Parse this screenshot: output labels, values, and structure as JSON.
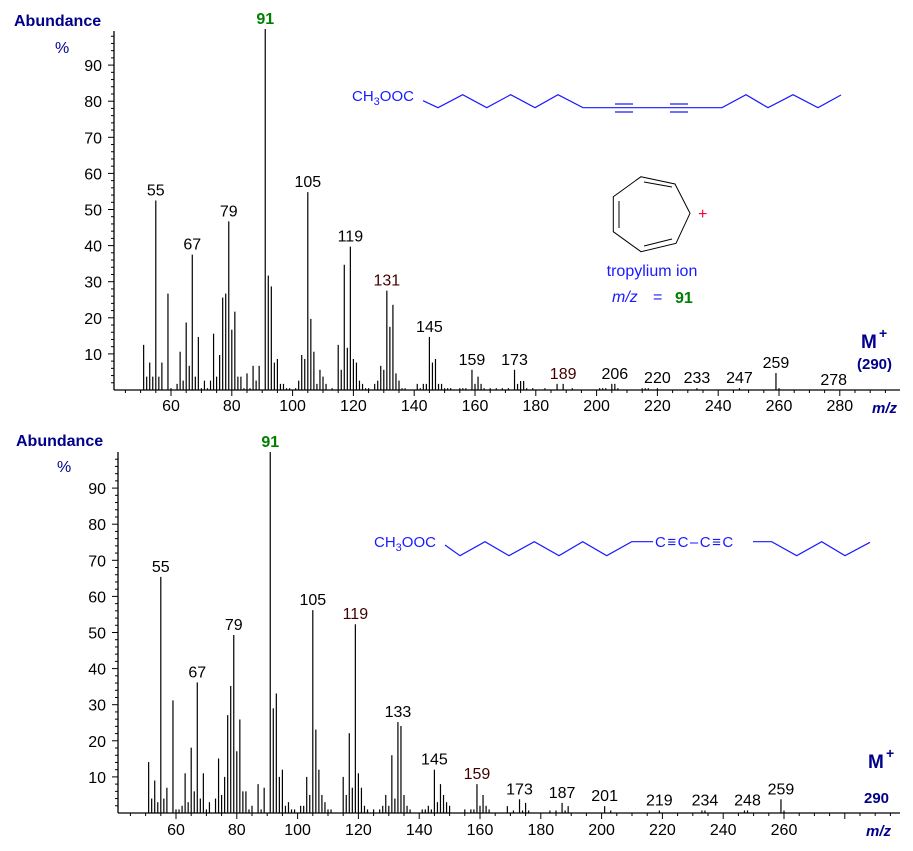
{
  "colors": {
    "axis_title": "#00008b",
    "structure": "#1a1aff",
    "base_peak_label": "#008000",
    "highlight_label": "#400000",
    "plus": "#ff0033"
  },
  "chart_data": [
    {
      "type": "bar",
      "ylabel": "Abundance",
      "yunit": "%",
      "xlabel": "m/z",
      "xlim": [
        41,
        297
      ],
      "ylim": [
        0,
        100
      ],
      "grid": false,
      "x_ticks": [
        "60",
        "80",
        "100",
        "120",
        "140",
        "160",
        "180",
        "200",
        "220",
        "240",
        "260",
        "280"
      ],
      "y_ticks": [
        "10",
        "20",
        "30",
        "40",
        "50",
        "60",
        "70",
        "80",
        "90"
      ],
      "molecular_ion": {
        "label": "M",
        "charge": "+",
        "value": "(290)"
      },
      "structure": {
        "head_a": "CH",
        "head_sub": "3",
        "head_b": "OOC"
      },
      "inset": {
        "name": "tropylium ion",
        "mz_label": "m/z",
        "equals": "=",
        "mz_value": "91",
        "charge": "+"
      },
      "peak_labels": [
        {
          "mz": 55,
          "text": "55"
        },
        {
          "mz": 67,
          "text": "67"
        },
        {
          "mz": 79,
          "text": "79"
        },
        {
          "mz": 91,
          "text": "91",
          "base": true
        },
        {
          "mz": 105,
          "text": "105"
        },
        {
          "mz": 119,
          "text": "119"
        },
        {
          "mz": 131,
          "text": "131",
          "hl": true
        },
        {
          "mz": 145,
          "text": "145"
        },
        {
          "mz": 159,
          "text": "159"
        },
        {
          "mz": 173,
          "text": "173"
        },
        {
          "mz": 189,
          "text": "189",
          "hl": true
        },
        {
          "mz": 206,
          "text": "206"
        },
        {
          "mz": 220,
          "text": "220"
        },
        {
          "mz": 233,
          "text": "233"
        },
        {
          "mz": 247,
          "text": "247"
        },
        {
          "mz": 259,
          "text": "259"
        },
        {
          "mz": 278,
          "text": "278"
        }
      ],
      "peaks": [
        [
          51,
          12.5
        ],
        [
          52,
          3.7
        ],
        [
          53,
          7.6
        ],
        [
          54,
          3.7
        ],
        [
          55,
          52.5
        ],
        [
          56,
          3.7
        ],
        [
          57,
          7.6
        ],
        [
          59,
          26.7
        ],
        [
          60,
          0.5
        ],
        [
          62,
          1.7
        ],
        [
          63,
          10.6
        ],
        [
          64,
          2.6
        ],
        [
          65,
          18.7
        ],
        [
          66,
          6.7
        ],
        [
          67,
          37.5
        ],
        [
          68,
          3.7
        ],
        [
          69,
          14.7
        ],
        [
          70,
          0.5
        ],
        [
          71,
          2.6
        ],
        [
          72,
          0.5
        ],
        [
          73,
          2.6
        ],
        [
          74,
          15.6
        ],
        [
          75,
          3.7
        ],
        [
          76,
          9.7
        ],
        [
          77,
          25.6
        ],
        [
          78,
          26.7
        ],
        [
          79,
          46.7
        ],
        [
          80,
          16.7
        ],
        [
          81,
          21.7
        ],
        [
          82,
          3.7
        ],
        [
          83,
          3.7
        ],
        [
          84,
          0.5
        ],
        [
          85,
          4.6
        ],
        [
          86,
          0.5
        ],
        [
          87,
          6.7
        ],
        [
          88,
          2.6
        ],
        [
          89,
          6.7
        ],
        [
          91,
          100
        ],
        [
          92,
          31.7
        ],
        [
          93,
          28.7
        ],
        [
          94,
          7.6
        ],
        [
          95,
          8.6
        ],
        [
          96,
          1.7
        ],
        [
          97,
          1.7
        ],
        [
          98,
          0.5
        ],
        [
          99,
          0.5
        ],
        [
          101,
          0.5
        ],
        [
          102,
          2.6
        ],
        [
          103,
          9.7
        ],
        [
          104,
          8.6
        ],
        [
          105,
          54.8
        ],
        [
          106,
          19.7
        ],
        [
          107,
          10.6
        ],
        [
          108,
          1.7
        ],
        [
          109,
          5.6
        ],
        [
          110,
          3.7
        ],
        [
          111,
          1.7
        ],
        [
          113,
          0.5
        ],
        [
          115,
          12.5
        ],
        [
          116,
          5.6
        ],
        [
          117,
          34.7
        ],
        [
          118,
          11.7
        ],
        [
          119,
          39.7
        ],
        [
          120,
          8.6
        ],
        [
          121,
          7.6
        ],
        [
          122,
          2.6
        ],
        [
          123,
          1.7
        ],
        [
          124,
          0.5
        ],
        [
          125,
          0.5
        ],
        [
          127,
          1.7
        ],
        [
          128,
          2.6
        ],
        [
          129,
          6.7
        ],
        [
          130,
          5.6
        ],
        [
          131,
          27.5
        ],
        [
          132,
          17.5
        ],
        [
          133,
          23.6
        ],
        [
          134,
          4.6
        ],
        [
          135,
          2.6
        ],
        [
          136,
          0.5
        ],
        [
          137,
          0.5
        ],
        [
          141,
          1.7
        ],
        [
          142,
          0.5
        ],
        [
          143,
          1.7
        ],
        [
          144,
          1.7
        ],
        [
          145,
          14.7
        ],
        [
          146,
          7.6
        ],
        [
          147,
          8.6
        ],
        [
          148,
          1.7
        ],
        [
          149,
          1.7
        ],
        [
          150,
          0.5
        ],
        [
          151,
          0.5
        ],
        [
          152,
          0.5
        ],
        [
          155,
          0.5
        ],
        [
          156,
          0.5
        ],
        [
          157,
          0.5
        ],
        [
          159,
          5.6
        ],
        [
          160,
          1.7
        ],
        [
          161,
          3.7
        ],
        [
          162,
          1.7
        ],
        [
          163,
          0.5
        ],
        [
          165,
          0.5
        ],
        [
          167,
          0.5
        ],
        [
          169,
          0.5
        ],
        [
          171,
          0.5
        ],
        [
          173,
          5.6
        ],
        [
          174,
          1.7
        ],
        [
          175,
          2.5
        ],
        [
          176,
          2.5
        ],
        [
          177,
          0.5
        ],
        [
          179,
          0.5
        ],
        [
          183,
          0.5
        ],
        [
          187,
          1.7
        ],
        [
          189,
          1.7
        ],
        [
          192,
          0.5
        ],
        [
          201,
          0.5
        ],
        [
          202,
          0.5
        ],
        [
          203,
          0.5
        ],
        [
          205,
          1.7
        ],
        [
          206,
          1.7
        ],
        [
          207,
          0.5
        ],
        [
          215,
          0.5
        ],
        [
          216,
          0.5
        ],
        [
          217,
          0.5
        ],
        [
          220,
          0.5
        ],
        [
          233,
          0.5
        ],
        [
          247,
          0.5
        ],
        [
          259,
          4.7
        ],
        [
          260,
          0.5
        ]
      ]
    },
    {
      "type": "bar",
      "ylabel": "Abundance",
      "yunit": "%",
      "xlabel": "m/z",
      "xlim": [
        41,
        296
      ],
      "ylim": [
        0,
        100
      ],
      "grid": false,
      "x_ticks": [
        "60",
        "80",
        "100",
        "120",
        "140",
        "160",
        "180",
        "200",
        "220",
        "240",
        "260"
      ],
      "y_ticks": [
        "10",
        "20",
        "30",
        "40",
        "50",
        "60",
        "70",
        "80",
        "90"
      ],
      "molecular_ion": {
        "label": "M",
        "charge": "+",
        "value": "290"
      },
      "structure": {
        "head_a": "CH",
        "head_sub": "3",
        "head_b": "OOC",
        "diyne": "C≡C–C≡C"
      },
      "peak_labels": [
        {
          "mz": 55,
          "text": "55"
        },
        {
          "mz": 67,
          "text": "67"
        },
        {
          "mz": 79,
          "text": "79"
        },
        {
          "mz": 91,
          "text": "91",
          "base": true
        },
        {
          "mz": 105,
          "text": "105"
        },
        {
          "mz": 119,
          "text": "119",
          "hl": true
        },
        {
          "mz": 133,
          "text": "133"
        },
        {
          "mz": 145,
          "text": "145"
        },
        {
          "mz": 159,
          "text": "159",
          "hl": true
        },
        {
          "mz": 173,
          "text": "173"
        },
        {
          "mz": 187,
          "text": "187"
        },
        {
          "mz": 201,
          "text": "201"
        },
        {
          "mz": 219,
          "text": "219"
        },
        {
          "mz": 234,
          "text": "234"
        },
        {
          "mz": 248,
          "text": "248"
        },
        {
          "mz": 259,
          "text": "259"
        }
      ],
      "peaks": [
        [
          51,
          14.1
        ],
        [
          52,
          4
        ],
        [
          53,
          9
        ],
        [
          54,
          3
        ],
        [
          55,
          65.4
        ],
        [
          56,
          4
        ],
        [
          57,
          7
        ],
        [
          59,
          31.2
        ],
        [
          60,
          1
        ],
        [
          61,
          1
        ],
        [
          62,
          2
        ],
        [
          63,
          11
        ],
        [
          64,
          3
        ],
        [
          65,
          18.1
        ],
        [
          66,
          6
        ],
        [
          67,
          36.2
        ],
        [
          68,
          4
        ],
        [
          69,
          11
        ],
        [
          70,
          1
        ],
        [
          71,
          3
        ],
        [
          73,
          4
        ],
        [
          74,
          15.1
        ],
        [
          75,
          5
        ],
        [
          76,
          10
        ],
        [
          77,
          27.1
        ],
        [
          78,
          35.2
        ],
        [
          79,
          49.3
        ],
        [
          80,
          17.1
        ],
        [
          81,
          25.9
        ],
        [
          82,
          6
        ],
        [
          83,
          6
        ],
        [
          84,
          1
        ],
        [
          85,
          2
        ],
        [
          87,
          8
        ],
        [
          88,
          1
        ],
        [
          89,
          7
        ],
        [
          91,
          100
        ],
        [
          92,
          29
        ],
        [
          93,
          33.1
        ],
        [
          94,
          10
        ],
        [
          95,
          12
        ],
        [
          96,
          2
        ],
        [
          97,
          3
        ],
        [
          98,
          1
        ],
        [
          99,
          1
        ],
        [
          101,
          2
        ],
        [
          102,
          2
        ],
        [
          103,
          10
        ],
        [
          104,
          5
        ],
        [
          105,
          56.2
        ],
        [
          106,
          23.1
        ],
        [
          107,
          12
        ],
        [
          108,
          5
        ],
        [
          109,
          3
        ],
        [
          110,
          1
        ],
        [
          111,
          1
        ],
        [
          115,
          10
        ],
        [
          116,
          5
        ],
        [
          117,
          22.1
        ],
        [
          118,
          7
        ],
        [
          119,
          52.3
        ],
        [
          120,
          11
        ],
        [
          121,
          7
        ],
        [
          122,
          2
        ],
        [
          123,
          1
        ],
        [
          125,
          1
        ],
        [
          127,
          1
        ],
        [
          128,
          2
        ],
        [
          129,
          5
        ],
        [
          130,
          2
        ],
        [
          131,
          16
        ],
        [
          132,
          4
        ],
        [
          133,
          25.2
        ],
        [
          134,
          24.1
        ],
        [
          135,
          5
        ],
        [
          136,
          2
        ],
        [
          137,
          1
        ],
        [
          141,
          1
        ],
        [
          142,
          1
        ],
        [
          143,
          2
        ],
        [
          144,
          1
        ],
        [
          145,
          12
        ],
        [
          146,
          3
        ],
        [
          147,
          8
        ],
        [
          148,
          5
        ],
        [
          149,
          3
        ],
        [
          150,
          2
        ],
        [
          155,
          1
        ],
        [
          157,
          1
        ],
        [
          158,
          1
        ],
        [
          159,
          8
        ],
        [
          160,
          2
        ],
        [
          161,
          5
        ],
        [
          162,
          2
        ],
        [
          163,
          1
        ],
        [
          169,
          1.9
        ],
        [
          171,
          0.7
        ],
        [
          173,
          3.8
        ],
        [
          174,
          0.7
        ],
        [
          175,
          2.8
        ],
        [
          176,
          0.7
        ],
        [
          183,
          0.7
        ],
        [
          185,
          0.7
        ],
        [
          187,
          2.8
        ],
        [
          188,
          0.7
        ],
        [
          189,
          1.9
        ],
        [
          201,
          1.9
        ],
        [
          203,
          0.7
        ],
        [
          219,
          0.7
        ],
        [
          233,
          0.7
        ],
        [
          234,
          0.7
        ],
        [
          247,
          0.7
        ],
        [
          248,
          0.7
        ],
        [
          259,
          3.8
        ],
        [
          260,
          0.7
        ]
      ]
    }
  ]
}
